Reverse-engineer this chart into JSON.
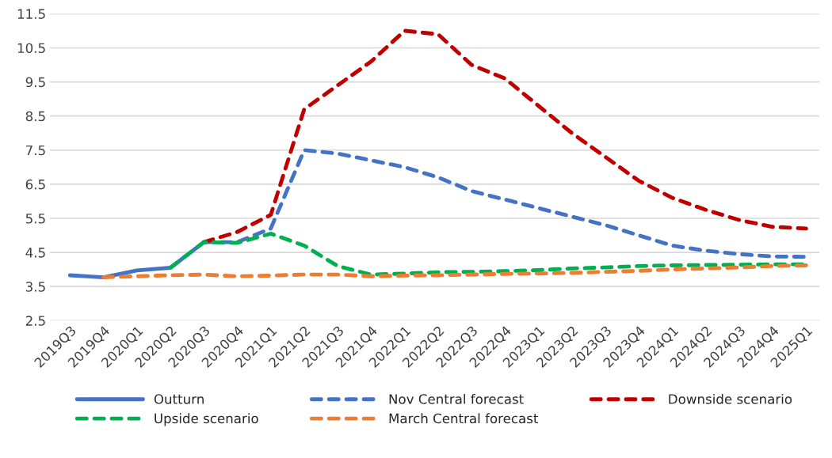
{
  "chart_data": {
    "type": "line",
    "categories": [
      "2019Q3",
      "2019Q4",
      "2020Q1",
      "2020Q2",
      "2020Q3",
      "2020Q4",
      "2021Q1",
      "2021Q2",
      "2021Q3",
      "2021Q4",
      "2022Q1",
      "2022Q2",
      "2022Q3",
      "2022Q4",
      "2023Q1",
      "2023Q2",
      "2023Q3",
      "2023Q4",
      "2024Q1",
      "2024Q2",
      "2024Q3",
      "2024Q4",
      "2025Q1"
    ],
    "series": [
      {
        "name": "Outturn",
        "color": "#4472c4",
        "line_style": "solid",
        "values": [
          3.83,
          3.77,
          3.97,
          4.05,
          4.8,
          null,
          null,
          null,
          null,
          null,
          null,
          null,
          null,
          null,
          null,
          null,
          null,
          null,
          null,
          null,
          null,
          null,
          null
        ]
      },
      {
        "name": "Nov Central forecast",
        "color": "#4472c4",
        "line_style": "dashed",
        "values": [
          null,
          null,
          null,
          null,
          4.8,
          4.8,
          5.2,
          7.5,
          7.4,
          7.2,
          7.0,
          6.7,
          6.3,
          6.05,
          5.8,
          5.55,
          5.3,
          5.0,
          4.7,
          4.55,
          4.45,
          4.38,
          4.37
        ]
      },
      {
        "name": "Downside scenario",
        "color": "#c00000",
        "line_style": "dashed",
        "values": [
          null,
          null,
          null,
          null,
          4.8,
          5.1,
          5.6,
          8.7,
          9.4,
          10.1,
          11.0,
          10.9,
          10.0,
          9.6,
          8.8,
          8.0,
          7.3,
          6.6,
          6.1,
          5.75,
          5.45,
          5.25,
          5.2
        ]
      },
      {
        "name": "Upside scenario",
        "color": "#00b050",
        "line_style": "dashed",
        "values": [
          null,
          null,
          null,
          4.05,
          4.8,
          4.78,
          5.05,
          4.7,
          4.1,
          3.85,
          3.88,
          3.92,
          3.93,
          3.95,
          3.98,
          4.03,
          4.06,
          4.1,
          4.12,
          4.13,
          4.14,
          4.15,
          4.15
        ]
      },
      {
        "name": "March Central forecast",
        "color": "#ed7d31",
        "line_style": "dashed",
        "values": [
          null,
          3.77,
          3.8,
          3.83,
          3.85,
          3.8,
          3.82,
          3.85,
          3.85,
          3.8,
          3.82,
          3.83,
          3.85,
          3.87,
          3.88,
          3.9,
          3.93,
          3.96,
          4.0,
          4.03,
          4.06,
          4.1,
          4.12
        ]
      }
    ],
    "ylim": [
      2.5,
      11.5
    ],
    "yticks": [
      2.5,
      3.5,
      4.5,
      5.5,
      6.5,
      7.5,
      8.5,
      9.5,
      10.5,
      11.5
    ],
    "grid": "y",
    "legend": "bottom",
    "marker": "none"
  }
}
